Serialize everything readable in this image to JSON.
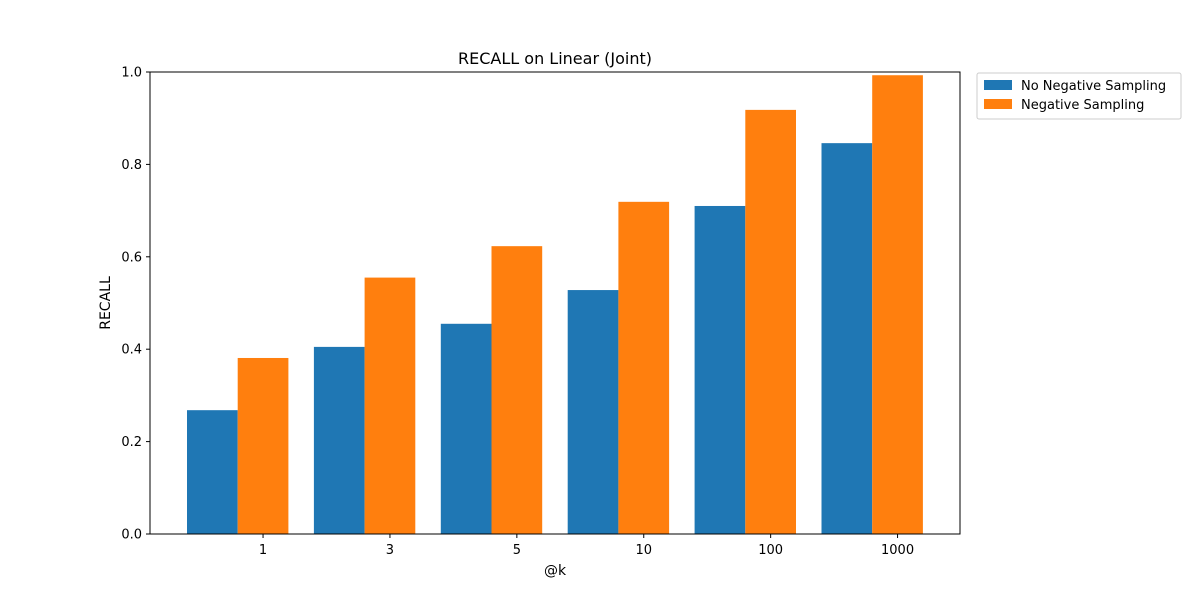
{
  "chart_data": {
    "type": "bar",
    "title": "RECALL on Linear (Joint)",
    "xlabel": "@k",
    "ylabel": "RECALL",
    "categories": [
      "1",
      "3",
      "5",
      "10",
      "100",
      "1000"
    ],
    "ylim": [
      0,
      1.0
    ],
    "yticks": [
      "0.0",
      "0.2",
      "0.4",
      "0.6",
      "0.8",
      "1.0"
    ],
    "grid": false,
    "legend_position": "outside-top-right",
    "series": [
      {
        "name": "No Negative Sampling",
        "color": "#1f77b4",
        "values": [
          0.268,
          0.405,
          0.455,
          0.528,
          0.71,
          0.846
        ]
      },
      {
        "name": "Negative Sampling",
        "color": "#ff7f0e",
        "values": [
          0.381,
          0.555,
          0.623,
          0.719,
          0.918,
          0.993
        ]
      }
    ]
  }
}
